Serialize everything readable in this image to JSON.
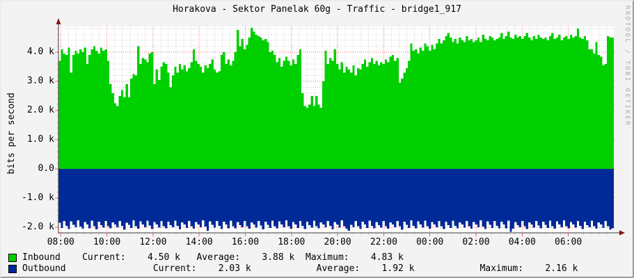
{
  "graph": {
    "watermark": "RRDTOOL / TOBI OETIKER"
  },
  "colors": {
    "inbound": "#00cf00",
    "outbound": "#002a97",
    "plot_background": "#ffffff",
    "image_background": "#f3f3f3",
    "major_grid": "#f85c5c",
    "minor_grid": "#cfcfcf",
    "axis": "#3a3a3a",
    "arrow": "#871111",
    "watermark_gray": "#a8a8a8"
  },
  "chart_data": {
    "type": "area",
    "title": "Horakova - Sektor Panelak 60g - Traffic - bridge1_917",
    "ylabel": "bits per second",
    "xlabel": "",
    "legend_position": "bottom",
    "grid": true,
    "x_start": "08:00",
    "x_end": "08:00 (+1 day)",
    "sample_minutes": 6,
    "x_tick_labels": [
      "08:00",
      "10:00",
      "12:00",
      "14:00",
      "16:00",
      "18:00",
      "20:00",
      "22:00",
      "00:00",
      "02:00",
      "04:00",
      "06:00"
    ],
    "y_ticks": [
      {
        "label": "4.0 k",
        "k": 4
      },
      {
        "label": "3.0 k",
        "k": 3
      },
      {
        "label": "2.0 k",
        "k": 2
      },
      {
        "label": "1.0 k",
        "k": 1
      },
      {
        "label": "0.0",
        "k": 0
      },
      {
        "label": "-1.0 k",
        "k": -1
      },
      {
        "label": "-2.0 k",
        "k": -2
      }
    ],
    "ylim_k": [
      -2.21,
      4.88
    ],
    "series": [
      {
        "name": "Inbound",
        "color": "#00cf00",
        "unit": "bits per second (k)",
        "values_k": [
          3.7,
          4.1,
          3.95,
          3.9,
          4.15,
          3.3,
          3.9,
          4.05,
          3.95,
          4.1,
          4.0,
          4.15,
          3.6,
          3.9,
          4.1,
          4.2,
          4.05,
          3.95,
          4.15,
          4.05,
          4.1,
          3.7,
          2.9,
          2.6,
          2.25,
          2.15,
          2.5,
          2.7,
          2.45,
          2.9,
          2.45,
          3.1,
          3.25,
          3.2,
          4.2,
          3.6,
          3.8,
          3.75,
          3.65,
          3.95,
          4.0,
          2.9,
          3.4,
          3.05,
          3.5,
          3.65,
          3.6,
          3.3,
          2.8,
          3.2,
          3.5,
          3.3,
          3.6,
          3.4,
          3.55,
          3.35,
          3.45,
          3.65,
          4.1,
          3.7,
          3.6,
          3.5,
          3.3,
          3.55,
          3.45,
          3.6,
          3.75,
          3.4,
          3.3,
          3.35,
          3.9,
          4.0,
          3.6,
          3.75,
          3.55,
          3.7,
          4.0,
          4.76,
          4.2,
          4.45,
          4.1,
          4.25,
          4.5,
          4.83,
          4.7,
          4.6,
          4.55,
          4.5,
          4.4,
          4.45,
          4.35,
          4.0,
          4.05,
          3.9,
          3.65,
          3.8,
          3.5,
          3.7,
          3.85,
          3.7,
          3.55,
          3.75,
          3.6,
          3.9,
          4.1,
          2.6,
          2.15,
          2.1,
          2.2,
          2.5,
          2.15,
          2.5,
          2.2,
          2.1,
          3.0,
          4.05,
          3.6,
          3.8,
          3.7,
          4.1,
          3.6,
          3.4,
          3.65,
          3.3,
          3.5,
          3.4,
          3.3,
          3.55,
          3.2,
          3.45,
          3.4,
          3.6,
          3.75,
          3.5,
          3.65,
          3.8,
          3.6,
          3.7,
          3.55,
          3.65,
          3.6,
          3.75,
          3.65,
          3.85,
          3.9,
          3.7,
          3.8,
          2.95,
          3.1,
          3.3,
          3.45,
          3.7,
          4.3,
          4.05,
          4.1,
          3.95,
          4.15,
          4.05,
          4.3,
          4.2,
          4.05,
          4.25,
          4.1,
          4.3,
          4.45,
          4.3,
          4.4,
          4.55,
          4.65,
          4.5,
          4.35,
          4.45,
          4.3,
          4.5,
          4.4,
          4.35,
          4.55,
          4.4,
          4.45,
          4.35,
          4.4,
          4.5,
          4.35,
          4.6,
          4.45,
          4.4,
          4.55,
          4.5,
          4.4,
          4.45,
          4.5,
          4.65,
          4.45,
          4.55,
          4.7,
          4.5,
          4.45,
          4.6,
          4.5,
          4.55,
          4.45,
          4.55,
          4.65,
          4.5,
          4.4,
          4.55,
          4.45,
          4.6,
          4.5,
          4.45,
          4.5,
          4.4,
          4.55,
          4.65,
          4.45,
          4.5,
          4.6,
          4.4,
          4.5,
          4.55,
          4.45,
          4.6,
          4.5,
          4.55,
          4.81,
          4.5,
          4.45,
          4.55,
          4.4,
          4.1,
          4.1,
          3.95,
          4.35,
          3.9,
          3.85,
          3.55,
          3.6,
          4.55,
          4.5,
          4.5
        ]
      },
      {
        "name": "Outbound",
        "color": "#002a97",
        "unit": "bits per second (k)",
        "values_k": [
          -1.85,
          -2.02,
          -1.78,
          -1.95,
          -2.06,
          -1.8,
          -1.92,
          -2.0,
          -1.76,
          -1.98,
          -2.05,
          -1.82,
          -1.9,
          -2.03,
          -1.77,
          -1.96,
          -2.07,
          -1.81,
          -1.93,
          -2.01,
          -1.78,
          -1.97,
          -2.04,
          -1.83,
          -1.91,
          -2.0,
          -1.79,
          -1.95,
          -2.08,
          -1.84,
          -1.92,
          -2.02,
          -1.76,
          -1.96,
          -2.05,
          -1.8,
          -1.9,
          -2.0,
          -1.77,
          -1.94,
          -2.06,
          -1.82,
          -1.91,
          -2.01,
          -1.78,
          -1.97,
          -2.04,
          -1.81,
          -1.93,
          -2.0,
          -1.77,
          -1.95,
          -2.07,
          -1.83,
          -1.9,
          -2.02,
          -1.79,
          -1.96,
          -2.05,
          -1.82,
          -1.91,
          -2.0,
          -1.76,
          -1.98,
          -2.12,
          -1.8,
          -1.92,
          -2.01,
          -1.78,
          -1.95,
          -2.06,
          -1.81,
          -1.9,
          -2.03,
          -1.77,
          -1.96,
          -2.04,
          -1.82,
          -1.93,
          -2.0,
          -1.79,
          -1.97,
          -2.05,
          -1.83,
          -1.91,
          -2.01,
          -1.78,
          -1.94,
          -2.07,
          -1.81,
          -1.92,
          -2.02,
          -1.77,
          -1.96,
          -2.04,
          -1.8,
          -1.9,
          -2.0,
          -1.76,
          -1.97,
          -2.05,
          -1.82,
          -1.91,
          -2.02,
          -1.78,
          -1.95,
          -2.06,
          -1.81,
          -1.93,
          -2.01,
          -1.77,
          -1.96,
          -2.04,
          -1.83,
          -1.9,
          -2.0,
          -1.79,
          -1.95,
          -2.07,
          -1.82,
          -1.91,
          -2.01,
          -1.76,
          -1.97,
          -2.05,
          -2.12,
          -1.92,
          -2.0,
          -1.78,
          -1.96,
          -2.06,
          -1.81,
          -1.9,
          -2.02,
          -1.77,
          -1.95,
          -2.04,
          -1.82,
          -1.93,
          -2.01,
          -1.78,
          -1.97,
          -2.05,
          -1.83,
          -1.91,
          -2.0,
          -1.79,
          -1.96,
          -2.08,
          -1.81,
          -1.92,
          -2.02,
          -1.76,
          -1.95,
          -2.04,
          -1.8,
          -1.9,
          -2.01,
          -1.77,
          -1.96,
          -2.05,
          -1.82,
          -1.91,
          -2.0,
          -1.78,
          -1.97,
          -2.06,
          -1.81,
          -1.93,
          -2.02,
          -1.77,
          -1.95,
          -2.04,
          -1.83,
          -1.9,
          -2.01,
          -1.79,
          -1.96,
          -2.05,
          -1.82,
          -1.91,
          -2.0,
          -1.76,
          -1.98,
          -2.06,
          -1.8,
          -1.92,
          -2.02,
          -1.78,
          -1.95,
          -2.04,
          -1.81,
          -1.9,
          -2.03,
          -1.77,
          -2.16,
          -2.05,
          -1.82,
          -1.93,
          -2.0,
          -1.79,
          -1.97,
          -2.06,
          -1.83,
          -1.91,
          -2.01,
          -1.78,
          -1.94,
          -2.04,
          -1.81,
          -1.92,
          -2.02,
          -1.77,
          -1.96,
          -2.05,
          -1.8,
          -1.9,
          -2.0,
          -1.76,
          -1.97,
          -2.04,
          -1.82,
          -1.91,
          -2.01,
          -1.78,
          -1.95,
          -2.06,
          -1.81,
          -1.93,
          -2.0,
          -1.77,
          -1.96,
          -2.05,
          -1.83,
          -1.9,
          -2.02,
          -1.79,
          -1.97,
          -2.08,
          -2.03
        ]
      }
    ]
  },
  "legend": {
    "rows": [
      {
        "label": "Inbound",
        "swatch_color": "#00cf00",
        "metrics": [
          {
            "name": "Current:",
            "value": "4.50 k"
          },
          {
            "name": "Average:",
            "value": "3.88 k"
          },
          {
            "name": "Maximum:",
            "value": "4.83 k"
          }
        ],
        "line": "Inbound    Current:    4.50 k   Average:    3.88 k  Maximum:    4.83 k"
      },
      {
        "label": "Outbound",
        "swatch_color": "#002a97",
        "metrics": [
          {
            "name": "Current:",
            "value": "2.03 k"
          },
          {
            "name": "Average:",
            "value": "1.92 k"
          },
          {
            "name": "Maximum:",
            "value": "2.16 k"
          }
        ],
        "line": "Outbound                Current:    2.03 k            Average:    1.92 k            Maximum:    2.16 k"
      }
    ]
  }
}
